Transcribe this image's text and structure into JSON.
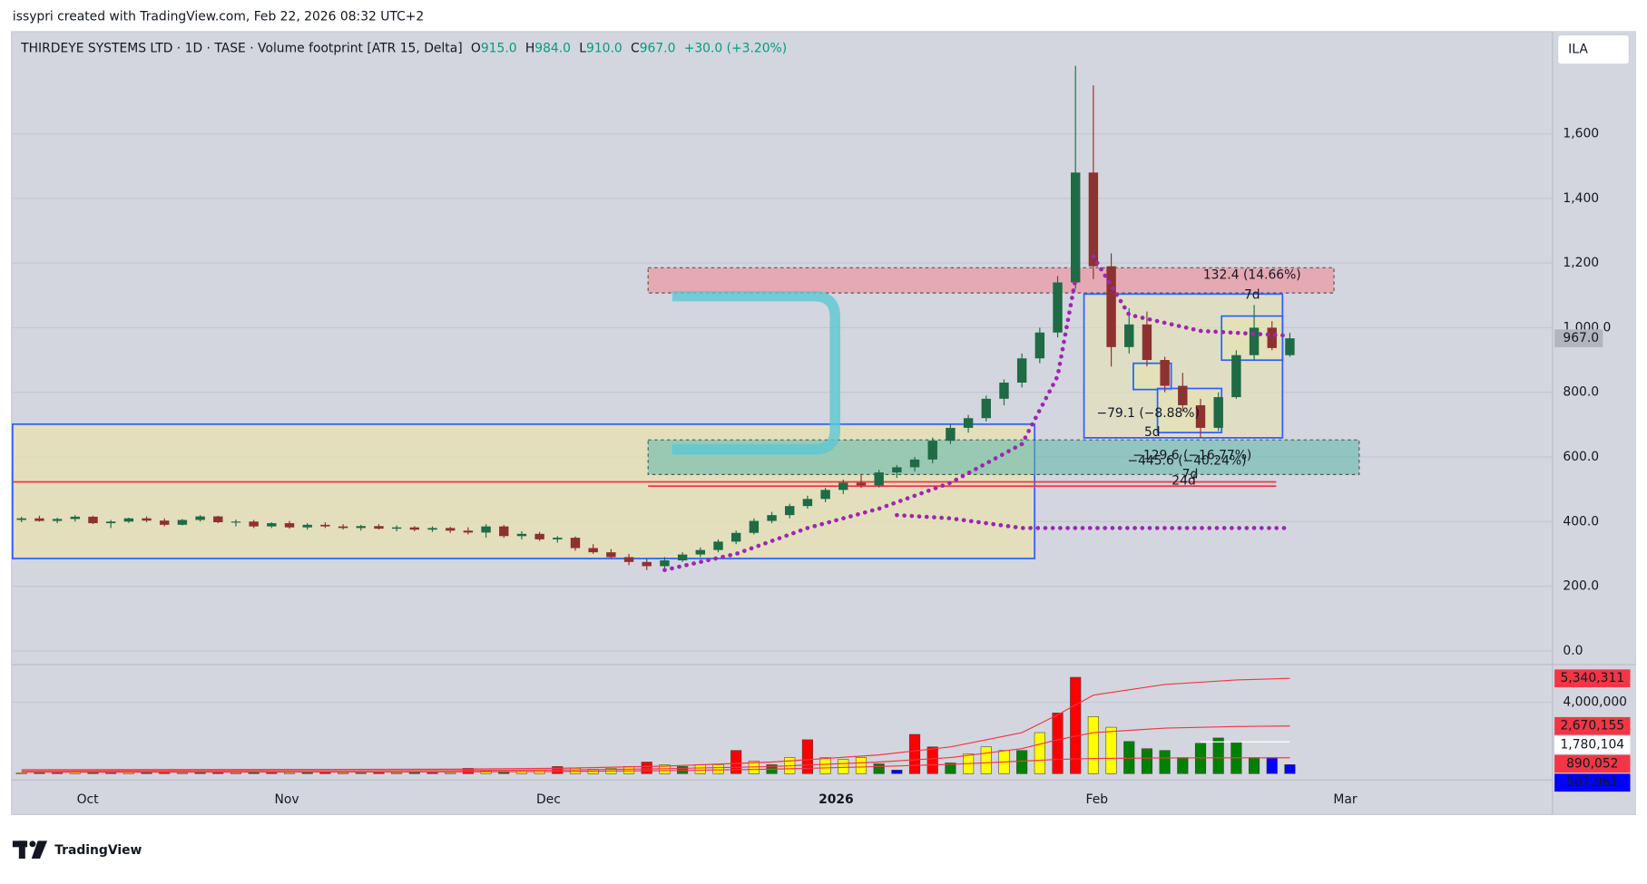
{
  "header": {
    "attribution": "issypri created with TradingView.com, Feb 22, 2026 08:32 UTC+2",
    "currency": "ILA",
    "brand": "TradingView"
  },
  "chart_data": [
    {
      "type": "candlestick",
      "title": "THIRDEYE SYSTEMS LTD · 1D · TASE · Volume footprint [ATR 15, Delta]",
      "legend_items": [
        {
          "key": "O",
          "value": "915.0"
        },
        {
          "key": "H",
          "value": "984.0"
        },
        {
          "key": "L",
          "value": "910.0"
        },
        {
          "key": "C",
          "value": "967.0"
        }
      ],
      "change": "+30.0 (+3.20%)",
      "up_color": "#1e6b45",
      "down_color": "#8e3131",
      "open": [
        405,
        410,
        402,
        408,
        415,
        395,
        400,
        410,
        403,
        390,
        405,
        416,
        398,
        400,
        385,
        395,
        382,
        390,
        385,
        380,
        386,
        378,
        382,
        375,
        380,
        372,
        366,
        385,
        355,
        362,
        345,
        350,
        318,
        305,
        290,
        275,
        262,
        280,
        298,
        312,
        338,
        365,
        402,
        420,
        448,
        470,
        498,
        520,
        512,
        552,
        568,
        592,
        650,
        690,
        720,
        780,
        830,
        905,
        985,
        1140,
        1480,
        1190,
        940,
        1010,
        900,
        820,
        760,
        690,
        785,
        915,
        1000,
        915
      ],
      "high": [
        415,
        418,
        412,
        420,
        418,
        405,
        412,
        416,
        410,
        408,
        420,
        418,
        406,
        405,
        398,
        402,
        395,
        398,
        392,
        390,
        392,
        388,
        386,
        385,
        384,
        382,
        392,
        390,
        370,
        368,
        355,
        354,
        330,
        315,
        300,
        285,
        290,
        305,
        320,
        345,
        372,
        410,
        430,
        455,
        480,
        505,
        530,
        545,
        560,
        575,
        600,
        660,
        700,
        730,
        790,
        840,
        920,
        1000,
        1160,
        1810,
        1750,
        1230,
        1060,
        1050,
        910,
        860,
        780,
        800,
        930,
        1070,
        1020,
        984
      ],
      "low": [
        398,
        400,
        395,
        400,
        392,
        380,
        396,
        398,
        385,
        388,
        400,
        395,
        385,
        380,
        380,
        378,
        375,
        380,
        375,
        372,
        375,
        370,
        370,
        368,
        365,
        360,
        350,
        350,
        345,
        340,
        335,
        310,
        300,
        285,
        265,
        250,
        248,
        275,
        290,
        305,
        330,
        360,
        395,
        410,
        440,
        460,
        485,
        505,
        505,
        535,
        555,
        580,
        640,
        675,
        710,
        760,
        815,
        890,
        970,
        1120,
        1150,
        880,
        920,
        880,
        800,
        740,
        660,
        680,
        780,
        900,
        930,
        910
      ],
      "close": [
        410,
        402,
        408,
        415,
        395,
        400,
        410,
        403,
        390,
        405,
        416,
        398,
        400,
        385,
        395,
        382,
        390,
        385,
        380,
        386,
        378,
        382,
        375,
        380,
        372,
        366,
        385,
        355,
        362,
        345,
        350,
        318,
        305,
        290,
        275,
        262,
        280,
        298,
        312,
        338,
        365,
        402,
        420,
        448,
        470,
        498,
        520,
        512,
        552,
        568,
        592,
        650,
        690,
        720,
        780,
        830,
        905,
        985,
        1140,
        1480,
        1190,
        940,
        1010,
        900,
        820,
        760,
        690,
        785,
        915,
        1000,
        937,
        967
      ],
      "series": [
        {
          "color": "#9c27b0",
          "x": [
            36,
            40,
            44,
            48,
            52,
            56,
            58,
            59,
            59.5,
            60,
            62,
            66,
            71,
            71.5,
            49,
            52,
            56,
            71
          ],
          "values": [
            250,
            300,
            380,
            440,
            520,
            640,
            850,
            1150,
            null,
            1220,
            1040,
            990,
            975,
            null,
            420,
            410,
            380,
            380
          ]
        }
      ],
      "last_price": {
        "value": 967,
        "label": "967.0"
      },
      "last_price_color": "#b2b5be",
      "xlim": [
        -0.5,
        85.7
      ],
      "xticks": [
        {
          "value": 3.7,
          "label": "Oct"
        },
        {
          "value": 14.85,
          "label": "Nov"
        },
        {
          "value": 29.5,
          "label": "Dec"
        },
        {
          "value": 45.6,
          "label": "2026"
        },
        {
          "value": 60.2,
          "label": "Feb"
        },
        {
          "value": 74.1,
          "label": "Mar"
        }
      ],
      "ylim": [
        -39,
        1916
      ],
      "yticks": [
        {
          "value": 0,
          "label": "0.0"
        },
        {
          "value": 200,
          "label": "200.0"
        },
        {
          "value": 400,
          "label": "400.0"
        },
        {
          "value": 600,
          "label": "600.0"
        },
        {
          "value": 800,
          "label": "800.0"
        },
        {
          "value": 1000,
          "label": "1,000.0"
        },
        {
          "value": 1200,
          "label": "1,200"
        },
        {
          "value": 1400,
          "label": "1,400"
        },
        {
          "value": 1600,
          "label": "1,600"
        }
      ],
      "grid": true,
      "annotations": [
        {
          "text": "132.4 (14.66%)"
        },
        {
          "text": "7d"
        },
        {
          "text": "−79.1 (−8.88%)"
        },
        {
          "text": "5d"
        },
        {
          "text": "−129.6 (−16.77%)"
        },
        {
          "text": "−445.6 (−40.24%)"
        },
        {
          "text": "24d"
        },
        {
          "text": "7d"
        }
      ]
    },
    {
      "type": "bar",
      "values": [
        50000,
        60000,
        45000,
        70000,
        55000,
        40000,
        65000,
        50000,
        80000,
        45000,
        60000,
        55000,
        50000,
        70000,
        45000,
        60000,
        50000,
        65000,
        55000,
        40000,
        60000,
        50000,
        70000,
        55000,
        60000,
        300000,
        150000,
        120000,
        120000,
        200000,
        400000,
        300000,
        250000,
        300000,
        400000,
        650000,
        500000,
        400000,
        500000,
        500000,
        1300000,
        700000,
        500000,
        900000,
        1900000,
        900000,
        800000,
        900000,
        550000,
        200000,
        2200000,
        1500000,
        600000,
        1100000,
        1500000,
        1300000,
        1300000,
        2300000,
        3400000,
        5400000,
        3200000,
        2600000,
        1800000,
        1400000,
        1300000,
        900000,
        1700000,
        2000000,
        1800000,
        900000,
        900000,
        507961
      ],
      "value_labels": [
        null,
        null,
        null,
        null,
        null,
        null,
        null,
        null,
        null,
        null,
        null,
        null,
        null,
        null,
        null,
        null,
        null,
        null,
        null,
        null,
        null,
        null,
        null,
        null,
        null,
        null,
        null,
        null,
        null,
        null,
        null,
        null,
        null,
        null,
        null,
        null,
        null,
        null,
        null,
        null,
        null,
        null,
        null,
        null,
        null,
        null,
        null,
        null,
        null,
        null,
        null,
        null,
        null,
        null,
        null,
        null,
        null,
        null,
        null,
        null,
        null,
        null,
        null,
        null,
        null,
        null,
        null,
        null,
        null,
        null,
        null,
        "507,961"
      ],
      "colors": [
        "#ffff00",
        "#008000",
        "#ff0000",
        "#ffff00",
        "#008000",
        "#ff0000",
        "#ffff00",
        "#008000",
        "#ff0000",
        "#ffff00",
        "#008000",
        "#ff0000",
        "#ffff00",
        "#008000",
        "#ff0000",
        "#ffff00",
        "#008000",
        "#ff0000",
        "#ffff00",
        "#008000",
        "#ff0000",
        "#ffff00",
        "#008000",
        "#ff0000",
        "#ffff00",
        "#ff0000",
        "#ffff00",
        "#008000",
        "#ffff00",
        "#ffff00",
        "#ff0000",
        "#ffff00",
        "#ffff00",
        "#ffff00",
        "#ffff00",
        "#ff0000",
        "#ffff00",
        "#008000",
        "#ffff00",
        "#ffff00",
        "#ff0000",
        "#ffff00",
        "#008000",
        "#ffff00",
        "#ff0000",
        "#ffff00",
        "#ffff00",
        "#ffff00",
        "#008000",
        "#0000ff",
        "#ff0000",
        "#ff0000",
        "#008000",
        "#ffff00",
        "#ffff00",
        "#ffff00",
        "#008000",
        "#ffff00",
        "#ff0000",
        "#ff0000",
        "#ffff00",
        "#ffff00",
        "#008000",
        "#008000",
        "#008000",
        "#008000",
        "#008000",
        "#008000",
        "#008000",
        "#008000",
        "#0000ff",
        "#0000ff"
      ],
      "ylim": [
        -294000,
        6059000
      ],
      "yticks": [
        {
          "value": 4000000,
          "label": "4,000,000"
        }
      ],
      "series": [
        {
          "color": "#f23645",
          "x": [
            0,
            12,
            24,
            30,
            36,
            42,
            48,
            52,
            56,
            58,
            60,
            64,
            68,
            71
          ],
          "values": [
            220000,
            230000,
            250000,
            300000,
            420000,
            650000,
            1050000,
            1500000,
            2300000,
            3300000,
            4400000,
            5000000,
            5250000,
            5340311
          ],
          "value_labels": [
            null,
            null,
            null,
            null,
            null,
            null,
            null,
            null,
            null,
            null,
            null,
            null,
            null,
            "5,340,311"
          ]
        },
        {
          "color": "#f23645",
          "x": [
            0,
            12,
            24,
            30,
            36,
            42,
            48,
            52,
            56,
            58,
            60,
            64,
            68,
            71
          ],
          "values": [
            150000,
            160000,
            170000,
            200000,
            280000,
            400000,
            650000,
            900000,
            1400000,
            1900000,
            2300000,
            2550000,
            2640000,
            2670155
          ],
          "value_labels": [
            null,
            null,
            null,
            null,
            null,
            null,
            null,
            null,
            null,
            null,
            null,
            null,
            null,
            "2,670,155"
          ]
        },
        {
          "color": "#ffffff",
          "x": [
            66,
            71
          ],
          "values": [
            1780104,
            1780104
          ],
          "value_labels": [
            null,
            "1,780,104"
          ]
        },
        {
          "color": "#f23645",
          "x": [
            0,
            12,
            24,
            30,
            36,
            42,
            48,
            52,
            56,
            58,
            60,
            64,
            68,
            71
          ],
          "values": [
            80000,
            90000,
            100000,
            120000,
            170000,
            250000,
            400000,
            520000,
            700000,
            800000,
            850000,
            880000,
            890000,
            890052
          ],
          "value_labels": [
            null,
            null,
            null,
            null,
            null,
            null,
            null,
            null,
            null,
            null,
            null,
            null,
            null,
            "890,052"
          ]
        }
      ]
    }
  ]
}
